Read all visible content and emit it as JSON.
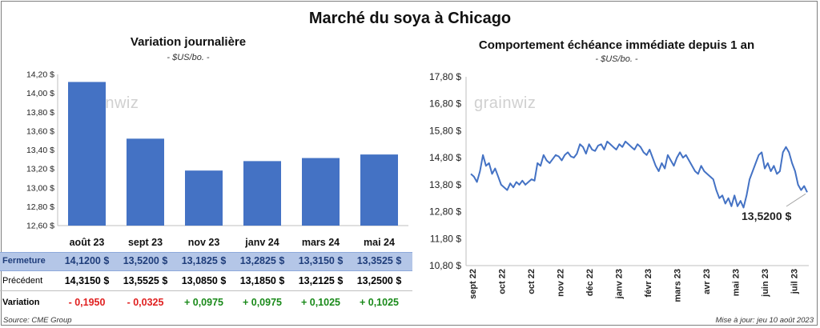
{
  "title": "Marché du soya à Chicago",
  "left": {
    "title": "Variation journalière",
    "unit": "- $US/bo. -",
    "logo": "grainwiz",
    "table": {
      "rows": [
        {
          "label": "Fermeture",
          "values": [
            "14,1200  $",
            "13,5200  $",
            "13,1825  $",
            "13,2825  $",
            "13,3150  $",
            "13,3525  $"
          ]
        },
        {
          "label": "Précédent",
          "values": [
            "14,3150  $",
            "13,5525  $",
            "13,0850  $",
            "13,1850  $",
            "13,2125  $",
            "13,2500  $"
          ]
        },
        {
          "label": "Variation",
          "values": [
            "- 0,1950",
            "- 0,0325",
            "+ 0,0975",
            "+ 0,0975",
            "+ 0,1025",
            "+ 0,1025"
          ]
        }
      ]
    }
  },
  "right": {
    "title": "Comportement  échéance immédiate depuis 1 an",
    "unit": "- $US/bo. -",
    "logo": "grainwiz",
    "callout": "13,5200 $"
  },
  "source": "Source: CME Group",
  "updated": "Mise à jour: jeu 10 août 2023",
  "colors": {
    "bar": "#4472c4",
    "line": "#4472c4",
    "negative": "#e02020",
    "positive": "#1a8a1a",
    "highlight_row": "#b4c6e7"
  },
  "chart_data": [
    {
      "type": "bar",
      "categories": [
        "août 23",
        "sept 23",
        "nov 23",
        "janv 24",
        "mars 24",
        "mai 24"
      ],
      "values": [
        14.12,
        13.52,
        13.1825,
        13.2825,
        13.315,
        13.3525
      ],
      "yticks": [
        "12,60 $",
        "12,80 $",
        "13,00 $",
        "13,20 $",
        "13,40 $",
        "13,60 $",
        "13,80 $",
        "14,00 $",
        "14,20 $"
      ],
      "ylim": [
        12.6,
        14.2
      ],
      "grid": false
    },
    {
      "type": "line",
      "xticks": [
        "sept 22",
        "oct 22",
        "oct 22",
        "nov 22",
        "déc 22",
        "janv 23",
        "févr 23",
        "mars 23",
        "avr 23",
        "mai 23",
        "juin 23",
        "juil 23"
      ],
      "yticks": [
        "10,80 $",
        "11,80 $",
        "12,80 $",
        "13,80 $",
        "14,80 $",
        "15,80 $",
        "16,80 $",
        "17,80 $"
      ],
      "ylim": [
        10.8,
        17.8
      ],
      "values": [
        14.2,
        14.1,
        13.9,
        14.3,
        14.9,
        14.5,
        14.6,
        14.2,
        14.4,
        14.1,
        13.8,
        13.7,
        13.6,
        13.85,
        13.7,
        13.9,
        13.8,
        13.95,
        13.8,
        13.9,
        14.0,
        13.95,
        14.6,
        14.5,
        14.9,
        14.7,
        14.6,
        14.75,
        14.9,
        14.85,
        14.7,
        14.9,
        15.0,
        14.85,
        14.8,
        14.95,
        15.3,
        15.2,
        14.95,
        15.3,
        15.1,
        15.05,
        15.25,
        15.3,
        15.1,
        15.4,
        15.3,
        15.2,
        15.1,
        15.3,
        15.2,
        15.4,
        15.3,
        15.2,
        15.1,
        15.3,
        15.2,
        15.0,
        14.9,
        15.1,
        14.8,
        14.5,
        14.3,
        14.6,
        14.4,
        14.9,
        14.7,
        14.5,
        14.8,
        15.0,
        14.8,
        14.9,
        14.7,
        14.5,
        14.3,
        14.2,
        14.5,
        14.3,
        14.2,
        14.1,
        14.0,
        13.6,
        13.3,
        13.4,
        13.1,
        13.3,
        13.0,
        13.4,
        13.0,
        13.2,
        12.95,
        13.4,
        14.0,
        14.3,
        14.6,
        14.9,
        15.0,
        14.4,
        14.6,
        14.3,
        14.5,
        14.2,
        14.3,
        15.0,
        15.2,
        15.0,
        14.6,
        14.3,
        13.8,
        13.6,
        13.75,
        13.52
      ],
      "grid": false
    }
  ]
}
